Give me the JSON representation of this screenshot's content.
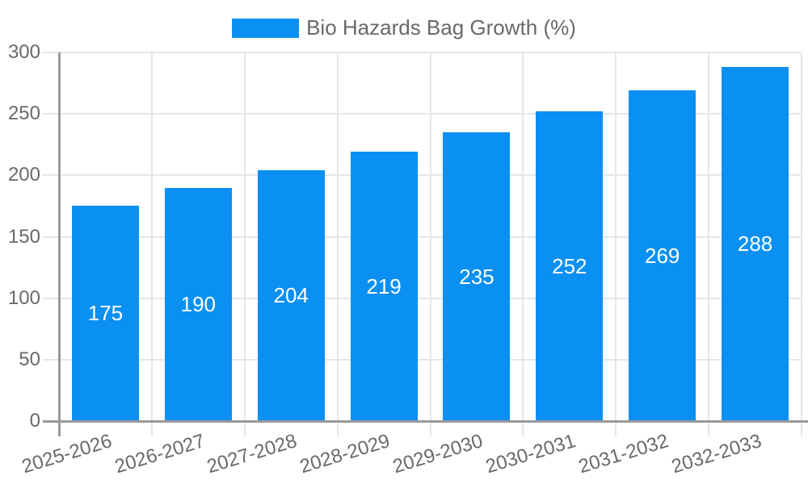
{
  "chart_data": {
    "type": "bar",
    "legend": {
      "position": "top-center",
      "label": "Bio Hazards Bag Growth (%)"
    },
    "categories": [
      "2025-2026",
      "2026-2027",
      "2027-2028",
      "2028-2029",
      "2029-2030",
      "2030-2031",
      "2031-2032",
      "2032-2033"
    ],
    "series": [
      {
        "name": "Bio Hazards Bag Growth (%)",
        "values": [
          175,
          190,
          204,
          219,
          235,
          252,
          269,
          288
        ]
      }
    ],
    "ylim": [
      0,
      300
    ],
    "yticks": [
      0,
      50,
      100,
      150,
      200,
      250,
      300
    ],
    "grid": true,
    "value_labels": {
      "position": "center-of-bar",
      "color": "#ffffff"
    },
    "x_tick_rotation_deg": -17
  },
  "colors": {
    "bar": "#0a90f2",
    "grid": "#e6e6e6",
    "axis": "#9a9a9a",
    "text": "#696969",
    "value_label": "#ffffff",
    "background": "#ffffff"
  }
}
